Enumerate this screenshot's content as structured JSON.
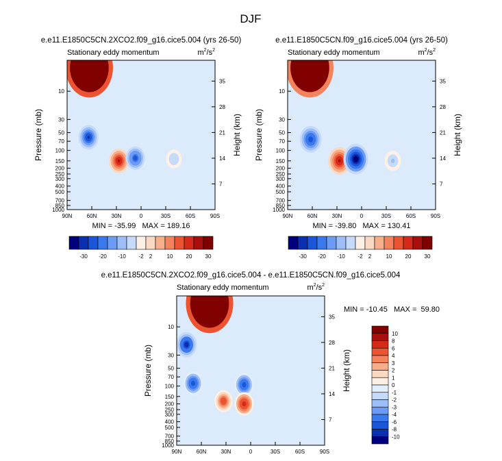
{
  "figure_title": "DJF",
  "chart_data": [
    {
      "type": "heatmap",
      "title": "e.e11.E1850C5CN.2XCO2.f09_g16.cice5.004 (yrs 26-50)",
      "subtitle": "Stationary eddy momentum",
      "units": "m²/s²",
      "units_base": "m",
      "units_sup1": "2",
      "units_mid": "/s",
      "units_sup2": "2",
      "ylabel": "Pressure (mb)",
      "ylabel_right": "Height (km)",
      "x_ticks": [
        "90N",
        "60N",
        "30N",
        "0",
        "30S",
        "60S",
        "90S"
      ],
      "y_ticks": [
        "10",
        "30",
        "50",
        "70",
        "100",
        "150",
        "200",
        "250",
        "300",
        "400",
        "500",
        "700",
        "850",
        "1000"
      ],
      "y2_ticks": [
        "35",
        "28",
        "21",
        "14",
        "7"
      ],
      "ylim": [
        1000,
        3
      ],
      "stats_text": "MIN = -35.99   MAX = 189.16",
      "min": -35.99,
      "max": 189.16,
      "features": [
        {
          "lat": 63,
          "p": 4,
          "value": 189.16
        },
        {
          "lat": 64,
          "p": 60,
          "value": -30
        },
        {
          "lat": 27,
          "p": 150,
          "value": 30
        },
        {
          "lat": 7,
          "p": 135,
          "value": -25
        },
        {
          "lat": -40,
          "p": 140,
          "value": -5
        }
      ],
      "colorbar": {
        "orientation": "horizontal",
        "labels": [
          "-30",
          "-20",
          "-10",
          "-2",
          "2",
          "10",
          "20",
          "30"
        ],
        "levels": [
          -35,
          -30,
          -25,
          -20,
          -15,
          -10,
          -5,
          -2,
          2,
          5,
          10,
          15,
          20,
          25,
          30,
          35
        ]
      }
    },
    {
      "type": "heatmap",
      "title": "e.e11.E1850C5CN.f09_g16.cice5.004 (yrs 26-50)",
      "subtitle": "Stationary eddy momentum",
      "units": "m²/s²",
      "units_base": "m",
      "units_sup1": "2",
      "units_mid": "/s",
      "units_sup2": "2",
      "ylabel": "Pressure (mb)",
      "ylabel_right": "Height (km)",
      "x_ticks": [
        "90N",
        "60N",
        "30N",
        "0",
        "30S",
        "60S",
        "90S"
      ],
      "y_ticks": [
        "10",
        "30",
        "50",
        "70",
        "100",
        "150",
        "200",
        "250",
        "300",
        "400",
        "500",
        "700",
        "850",
        "1000"
      ],
      "y2_ticks": [
        "35",
        "28",
        "21",
        "14",
        "7"
      ],
      "ylim": [
        1000,
        3
      ],
      "stats_text": "MIN = -39.80   MAX = 130.41",
      "min": -39.8,
      "max": 130.41,
      "features": [
        {
          "lat": 63,
          "p": 4,
          "value": 130.41
        },
        {
          "lat": 62,
          "p": 65,
          "value": -28
        },
        {
          "lat": 27,
          "p": 150,
          "value": 30
        },
        {
          "lat": 7,
          "p": 140,
          "value": -39.8
        },
        {
          "lat": -38,
          "p": 150,
          "value": -7
        }
      ],
      "colorbar": {
        "orientation": "horizontal",
        "labels": [
          "-30",
          "-20",
          "-10",
          "-2",
          "2",
          "10",
          "20",
          "30"
        ],
        "levels": [
          -35,
          -30,
          -25,
          -20,
          -15,
          -10,
          -5,
          -2,
          2,
          5,
          10,
          15,
          20,
          25,
          30,
          35
        ]
      }
    },
    {
      "type": "heatmap",
      "title": "e.e11.E1850C5CN.2XCO2.f09_g16.cice5.004 - e.e11.E1850C5CN.f09_g16.cice5.004",
      "subtitle": "Stationary eddy momentum",
      "units": "m²/s²",
      "units_base": "m",
      "units_sup1": "2",
      "units_mid": "/s",
      "units_sup2": "2",
      "ylabel": "Pressure (mb)",
      "ylabel_right": "Height (km)",
      "x_ticks": [
        "90N",
        "60N",
        "30N",
        "0",
        "30S",
        "60S",
        "90S"
      ],
      "y_ticks": [
        "10",
        "30",
        "50",
        "70",
        "100",
        "150",
        "200",
        "250",
        "300",
        "400",
        "500",
        "700",
        "850",
        "1000"
      ],
      "y2_ticks": [
        "35",
        "28",
        "21",
        "14",
        "7"
      ],
      "ylim": [
        1000,
        3
      ],
      "stats_text": "MIN = -10.45   MAX =  59.80",
      "min": -10.45,
      "max": 59.8,
      "features": [
        {
          "lat": 50,
          "p": 4,
          "value": 59.8
        },
        {
          "lat": 78,
          "p": 20,
          "value": -10.45
        },
        {
          "lat": 70,
          "p": 90,
          "value": -8
        },
        {
          "lat": 8,
          "p": 95,
          "value": -8
        },
        {
          "lat": 33,
          "p": 180,
          "value": 6
        },
        {
          "lat": 8,
          "p": 200,
          "value": 8
        }
      ],
      "colorbar": {
        "orientation": "vertical",
        "labels": [
          "10",
          "8",
          "6",
          "4",
          "3",
          "2",
          "1",
          "0",
          "-1",
          "-2",
          "-3",
          "-4",
          "-6",
          "-8",
          "-10"
        ],
        "levels": [
          -12,
          -10,
          -8,
          -6,
          -4,
          -3,
          -2,
          -1,
          0,
          1,
          2,
          3,
          4,
          6,
          8,
          10,
          12
        ]
      }
    }
  ],
  "colors": {
    "diverging": [
      "#00007f",
      "#0a2fb0",
      "#1a56d8",
      "#3a78ee",
      "#6b9bf4",
      "#9dbef7",
      "#c6dafa",
      "#e3eefc",
      "#fdf0e6",
      "#fbd8c1",
      "#f7ae8b",
      "#f3835c",
      "#ec5331",
      "#d52a1a",
      "#a80f0c",
      "#800000"
    ]
  }
}
